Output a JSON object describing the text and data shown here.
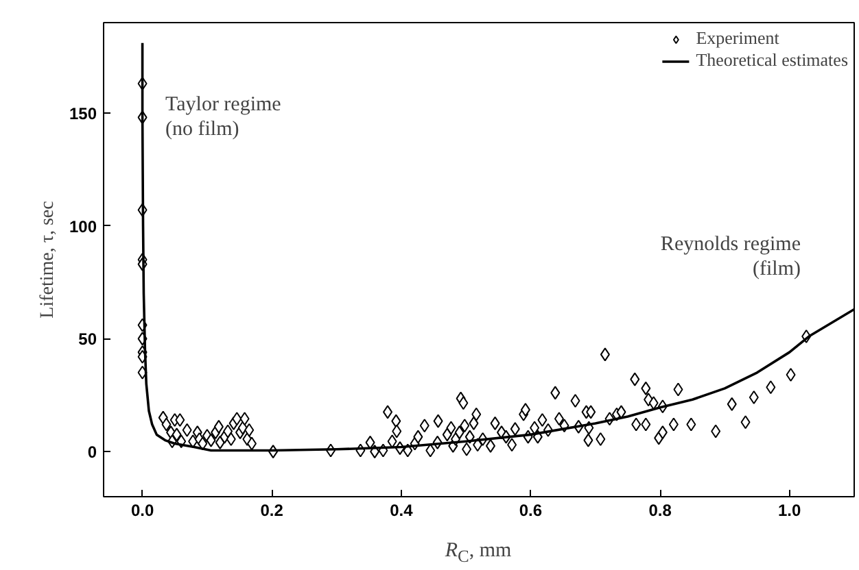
{
  "chart_data": {
    "type": "scatter",
    "xlabel": "R$_{C}$, mm",
    "ylabel": "Lifetime, τ, sec",
    "xlim": [
      -0.06,
      1.1
    ],
    "ylim": [
      -20,
      190
    ],
    "xticks": [
      {
        "value": 0,
        "label": "0.0"
      },
      0.2,
      0.4,
      0.6,
      0.8,
      {
        "value": 1,
        "label": "1.0"
      }
    ],
    "yticks": [
      0,
      50,
      100,
      150
    ],
    "grid": false,
    "legend": "top right",
    "annotations": [
      "Taylor regime\n(no film)",
      "Reynolds regime\n(film)"
    ],
    "series": [
      {
        "name": "Experiment",
        "marker": "diamond",
        "color": "#000000",
        "x": [
          0.0,
          0.0,
          0.0,
          0.0,
          0.0,
          0.0,
          0.0,
          0.0,
          0.0,
          0.0,
          0.032,
          0.037,
          0.044,
          0.05,
          0.058,
          0.053,
          0.06,
          0.046,
          0.069,
          0.078,
          0.085,
          0.088,
          0.093,
          0.1,
          0.106,
          0.113,
          0.118,
          0.12,
          0.127,
          0.132,
          0.137,
          0.141,
          0.146,
          0.151,
          0.155,
          0.158,
          0.162,
          0.165,
          0.169,
          0.202,
          0.291,
          0.337,
          0.352,
          0.359,
          0.372,
          0.379,
          0.386,
          0.392,
          0.393,
          0.398,
          0.41,
          0.421,
          0.426,
          0.436,
          0.445,
          0.456,
          0.457,
          0.471,
          0.477,
          0.48,
          0.484,
          0.49,
          0.492,
          0.496,
          0.498,
          0.501,
          0.506,
          0.512,
          0.516,
          0.518,
          0.526,
          0.538,
          0.545,
          0.555,
          0.562,
          0.571,
          0.576,
          0.589,
          0.592,
          0.596,
          0.606,
          0.611,
          0.618,
          0.627,
          0.638,
          0.644,
          0.652,
          0.669,
          0.674,
          0.686,
          0.69,
          0.693,
          0.689,
          0.708,
          0.715,
          0.722,
          0.733,
          0.74,
          0.761,
          0.763,
          0.778,
          0.778,
          0.782,
          0.79,
          0.804,
          0.798,
          0.804,
          0.821,
          0.828,
          0.848,
          0.886,
          0.911,
          0.932,
          0.945,
          0.971,
          1.002,
          1.026
        ],
        "values": [
          163,
          148,
          107,
          85,
          83,
          56,
          50,
          44,
          42,
          35,
          15,
          12,
          8.5,
          14,
          14,
          7.5,
          4.5,
          4.5,
          9.5,
          4.5,
          8.5,
          5.5,
          3.5,
          7,
          5,
          8.5,
          11,
          4,
          6.5,
          9,
          5.5,
          12.5,
          14.5,
          8.5,
          10.5,
          14.5,
          5.5,
          9.5,
          3.5,
          0,
          0.5,
          0.5,
          4,
          0,
          0.5,
          17.5,
          4.5,
          13.5,
          9,
          1.5,
          0.5,
          3.5,
          6.5,
          11.5,
          0.5,
          4,
          13.5,
          7.5,
          10.5,
          2.5,
          5.5,
          8.5,
          23.5,
          21.5,
          11.5,
          1,
          6.5,
          12.5,
          16.5,
          3,
          5.5,
          2.5,
          12.5,
          8.5,
          6.5,
          3,
          10,
          16.5,
          18.5,
          6.5,
          10.5,
          6.5,
          14,
          9.5,
          26,
          14.5,
          11.5,
          22.5,
          11,
          17.5,
          10.5,
          17.5,
          5,
          5.5,
          43,
          14.5,
          16.5,
          17.5,
          32,
          12,
          12,
          28,
          23,
          21.5,
          20,
          6,
          8.5,
          12,
          27.5,
          12,
          9,
          21,
          13,
          24,
          28.5,
          34,
          51
        ]
      },
      {
        "name": "Theoretical estimates",
        "type": "line",
        "color": "#000000",
        "line_style": "solid",
        "x": [
          0.0,
          0.0,
          0.001,
          0.002,
          0.004,
          0.006,
          0.01,
          0.015,
          0.022,
          0.035,
          0.05,
          0.08,
          0.106,
          0.2,
          0.3,
          0.4,
          0.5,
          0.6,
          0.7,
          0.75,
          0.8,
          0.85,
          0.9,
          0.95,
          1.0,
          1.03,
          1.1
        ],
        "values": [
          181,
          150,
          100,
          70,
          45,
          30,
          18,
          12,
          7.5,
          5,
          3.5,
          2,
          0.5,
          0.5,
          1,
          2,
          4.5,
          7.5,
          12.5,
          15.5,
          19.5,
          23,
          28,
          35,
          44,
          51,
          63
        ]
      }
    ]
  }
}
